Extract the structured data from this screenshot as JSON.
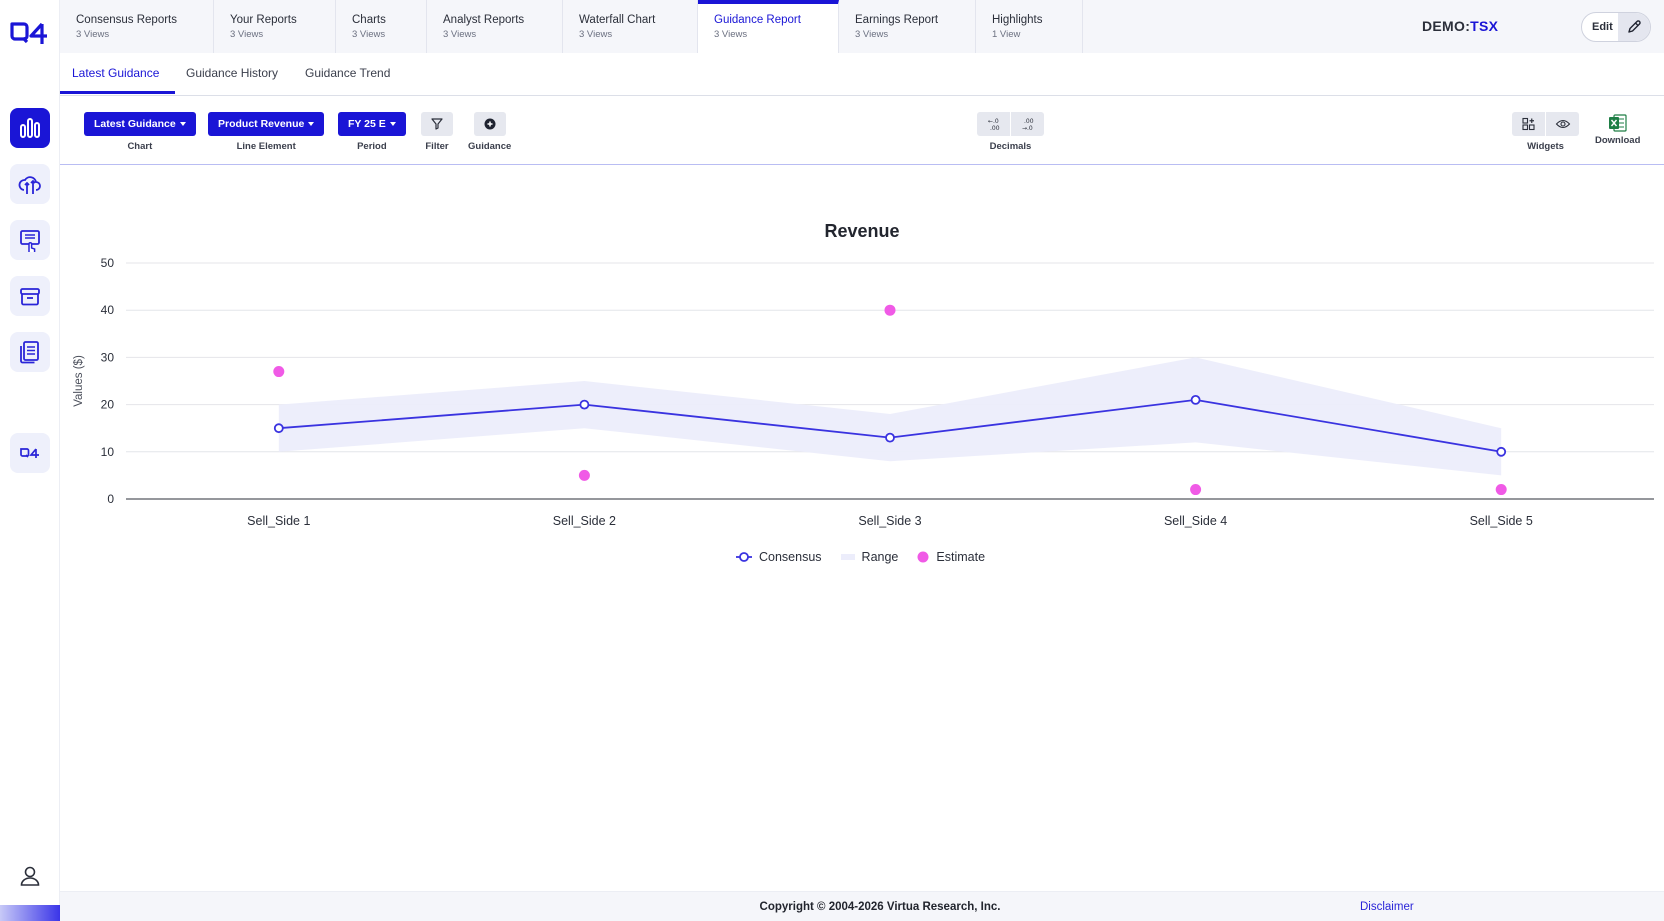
{
  "brand": {
    "logo_text": "Q4",
    "accent": "#1a15d6"
  },
  "report_tabs": [
    {
      "title": "Consensus Reports",
      "views": "3 Views"
    },
    {
      "title": "Your Reports",
      "views": "3 Views"
    },
    {
      "title": "Charts",
      "views": "3 Views"
    },
    {
      "title": "Analyst Reports",
      "views": "3 Views"
    },
    {
      "title": "Waterfall Chart",
      "views": "3 Views"
    },
    {
      "title": "Guidance Report",
      "views": "3 Views",
      "active": true
    },
    {
      "title": "Earnings Report",
      "views": "3 Views"
    },
    {
      "title": "Highlights",
      "views": "1 View"
    }
  ],
  "header": {
    "ticker_prefix": "DEMO:",
    "ticker_exchange": "TSX",
    "edit_label": "Edit"
  },
  "sub_tabs": [
    {
      "label": "Latest Guidance",
      "active": true
    },
    {
      "label": "Guidance History"
    },
    {
      "label": "Guidance Trend"
    }
  ],
  "toolbar": {
    "chart_value": "Latest Guidance",
    "chart_label": "Chart",
    "line_value": "Product Revenue",
    "line_label": "Line Element",
    "period_value": "FY 25 E",
    "period_label": "Period",
    "filter_label": "Filter",
    "guidance_label": "Guidance",
    "decimals_label": "Decimals",
    "widgets_label": "Widgets",
    "download_label": "Download"
  },
  "chart_data": {
    "type": "line",
    "title": "Revenue",
    "xlabel": "",
    "ylabel": "Values ($)",
    "ylim": [
      0,
      50
    ],
    "yticks": [
      "0",
      "10",
      "20",
      "30",
      "40",
      "50"
    ],
    "categories": [
      "Sell_Side 1",
      "Sell_Side 2",
      "Sell_Side 3",
      "Sell_Side 4",
      "Sell_Side 5"
    ],
    "series": [
      {
        "name": "Consensus",
        "type": "line",
        "color": "#3a33e0",
        "values": [
          15,
          20,
          13,
          21,
          10
        ]
      },
      {
        "name": "Range",
        "type": "area",
        "color": "#ecedfb",
        "low": [
          10,
          15,
          8,
          12,
          5
        ],
        "high": [
          20,
          25,
          18,
          30,
          15
        ]
      },
      {
        "name": "Estimate",
        "type": "scatter",
        "color": "#f05ae6",
        "values": [
          27,
          5,
          40,
          2,
          2
        ]
      }
    ],
    "grid": true,
    "legend_position": "bottom-center"
  },
  "footer": {
    "copyright": "Copyright © 2004-2026 Virtua Research, Inc.",
    "disclaimer": "Disclaimer"
  }
}
